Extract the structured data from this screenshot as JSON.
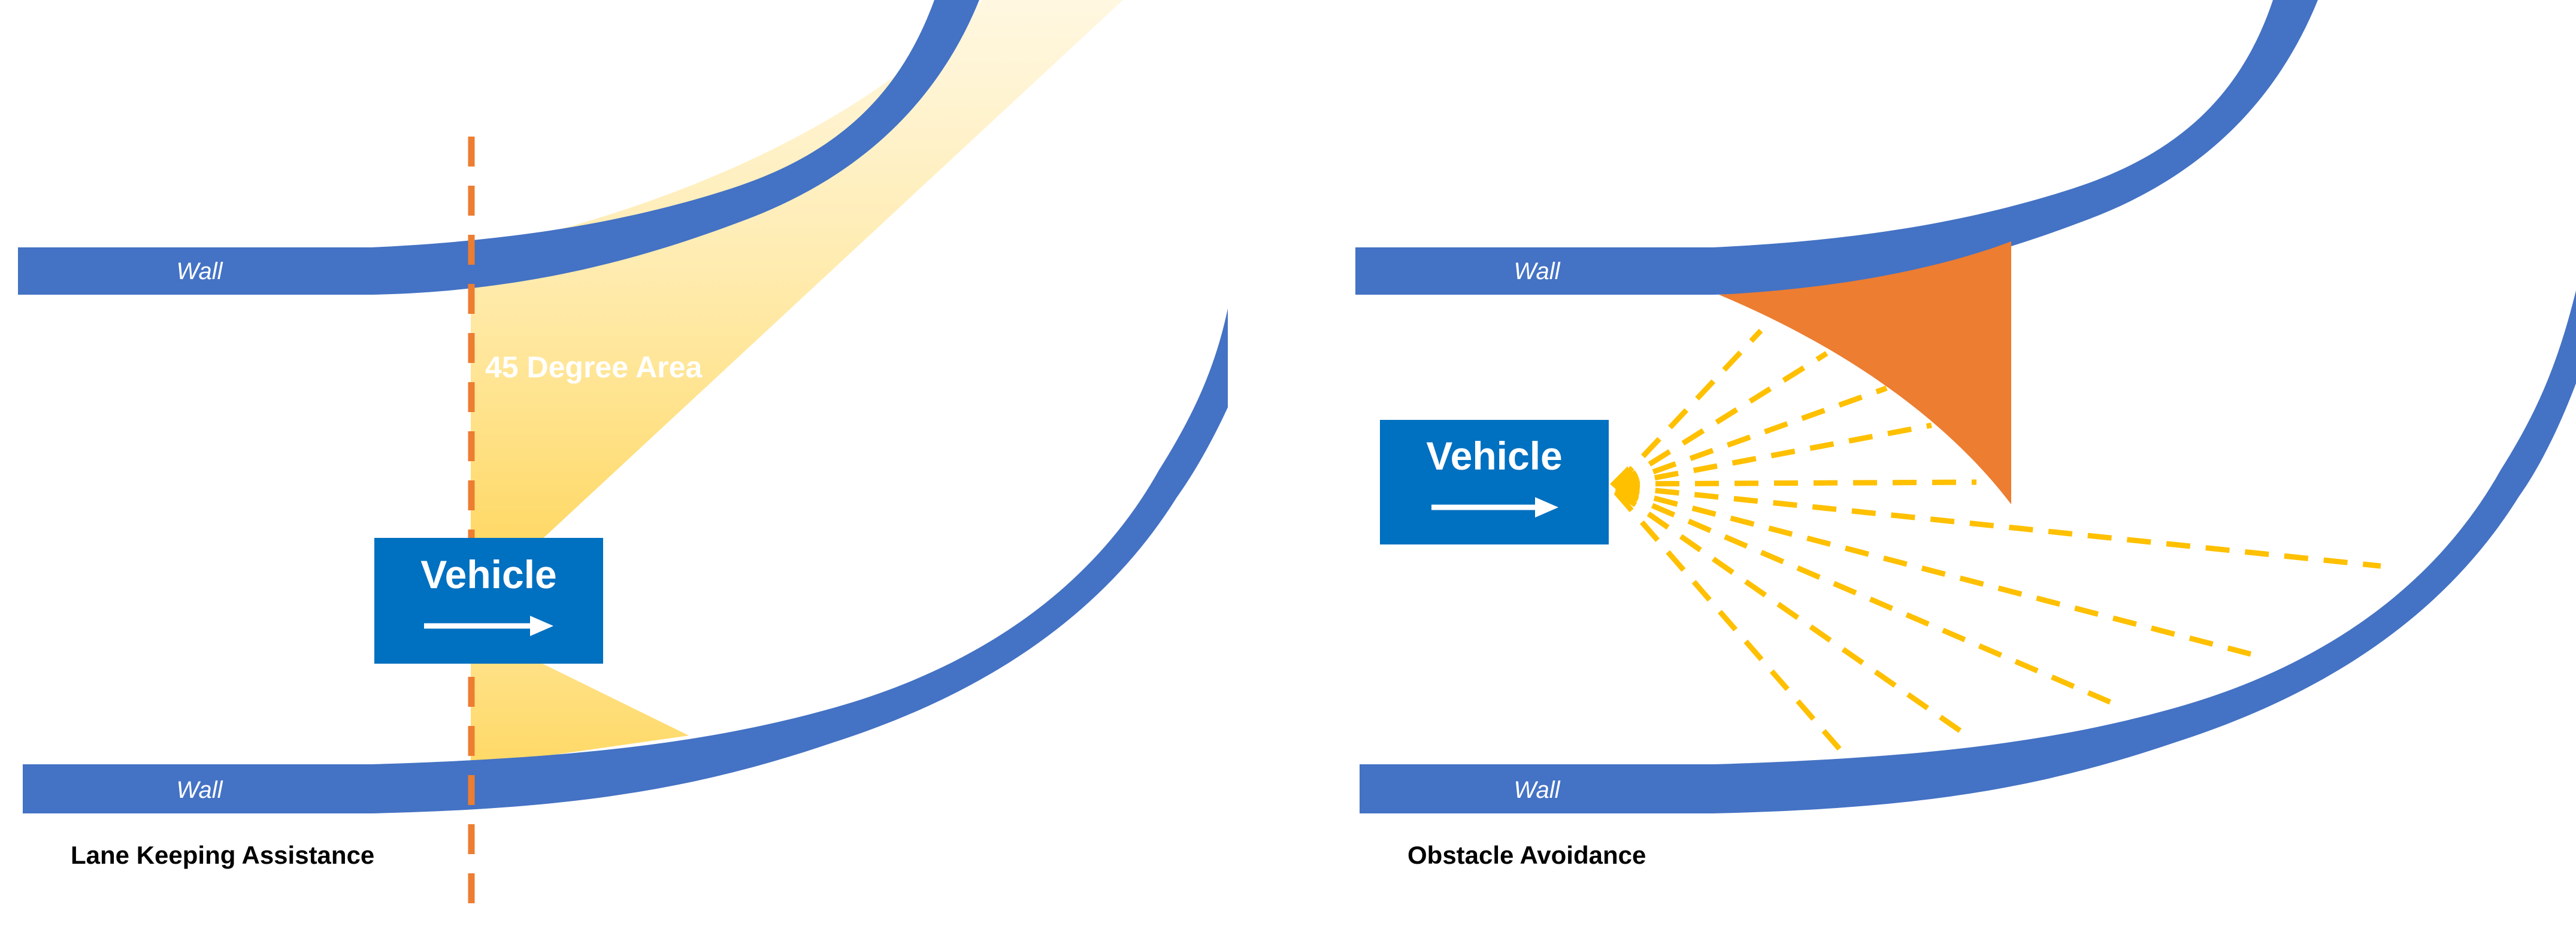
{
  "colors": {
    "wall": "#4472C4",
    "vehicle": "#0070C0",
    "area_fill": "#FFD966",
    "dashed_line": "#ED7D31",
    "obstacle": "#ED7D31",
    "sensor_rays": "#FFC000",
    "text_white": "#FFFFFF",
    "caption_text": "#000000"
  },
  "lane_keeping": {
    "caption": "Lane Keeping Assistance",
    "top_wall_label": "Wall",
    "bottom_wall_label": "Wall",
    "vehicle_label": "Vehicle",
    "area_label": "45 Degree Area",
    "icons": {
      "vehicle_direction": "right-arrow-icon"
    }
  },
  "obstacle_avoidance": {
    "caption": "Obstacle Avoidance",
    "top_wall_label": "Wall",
    "bottom_wall_label": "Wall",
    "vehicle_label": "Vehicle",
    "icons": {
      "vehicle_direction": "right-arrow-icon",
      "sensor": "sensor-rays-icon"
    }
  }
}
